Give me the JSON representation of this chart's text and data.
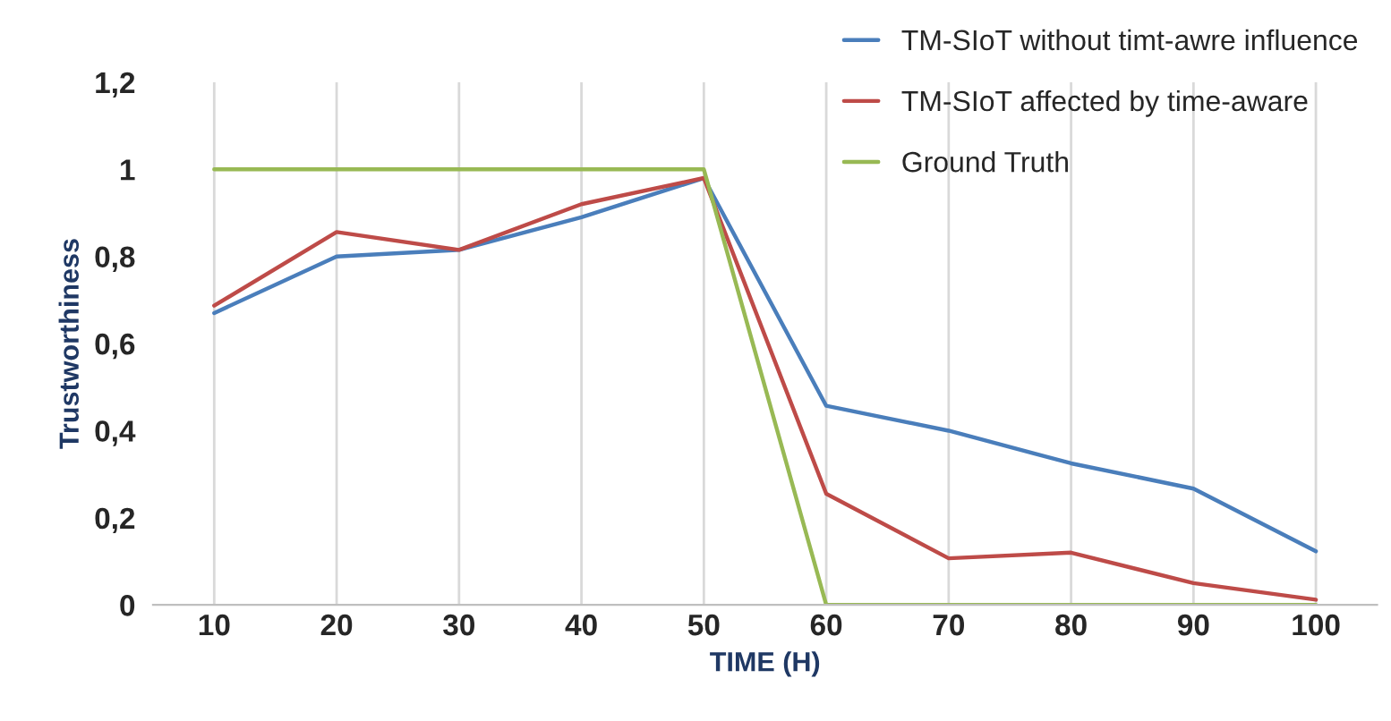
{
  "chart_data": {
    "type": "line",
    "xlabel": "TIME (H)",
    "ylabel": "Trustworthiness",
    "categories": [
      "10",
      "20",
      "30",
      "40",
      "50",
      "60",
      "70",
      "80",
      "90",
      "100"
    ],
    "series": [
      {
        "name": "TM-SIoT without timt-awre influence",
        "color": "#4a7ebb",
        "values": [
          0.67,
          0.8,
          0.815,
          0.89,
          0.98,
          0.457,
          0.4,
          0.325,
          0.267,
          0.123
        ]
      },
      {
        "name": "TM-SIoT affected by time-aware",
        "color": "#be4b48",
        "values": [
          0.687,
          0.856,
          0.815,
          0.92,
          0.98,
          0.255,
          0.107,
          0.12,
          0.05,
          0.012
        ]
      },
      {
        "name": "Ground Truth",
        "color": "#98b954",
        "values": [
          1,
          1,
          1,
          1,
          1,
          0,
          0,
          0,
          0,
          0
        ]
      }
    ],
    "ylim": [
      0,
      1.2
    ],
    "yticks": [
      {
        "value": 0,
        "label": "0"
      },
      {
        "value": 0.2,
        "label": "0,2"
      },
      {
        "value": 0.4,
        "label": "0,4"
      },
      {
        "value": 0.6,
        "label": "0,6"
      },
      {
        "value": 0.8,
        "label": "0,8"
      },
      {
        "value": 1,
        "label": "1"
      },
      {
        "value": 1.2,
        "label": "1,2"
      }
    ],
    "grid": "x",
    "legend": "top right",
    "marker": "none",
    "line_style": "solid"
  }
}
